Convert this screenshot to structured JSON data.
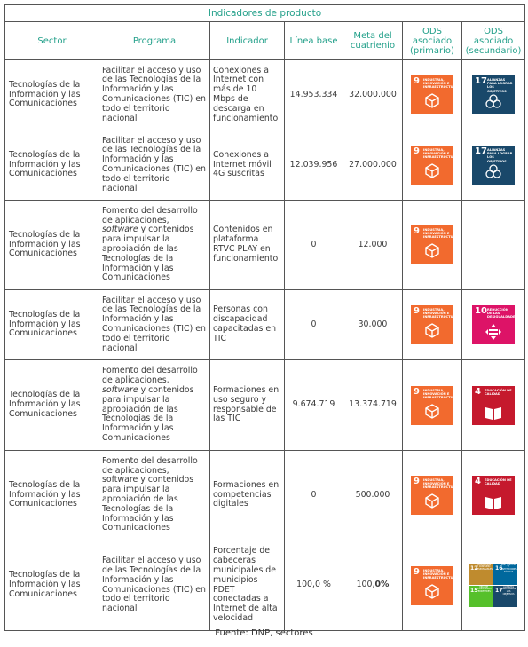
{
  "table_title": "Indicadores de producto",
  "headers": {
    "sector": "Sector",
    "programa": "Programa",
    "indicador": "Indicador",
    "linea_base": "Línea base",
    "meta": "Meta del cuatrienio",
    "ods_primario": "ODS asociado (primario)",
    "ods_secundario": "ODS asociado (secundario)"
  },
  "rows": [
    {
      "sector": "Tecnologías de la Información y las Comunicaciones",
      "programa": "Facilitar el acceso y uso de las Tecnologías de la Información y las Comunicaciones (TIC) en todo el territorio nacional",
      "indicador": "Conexiones a Internet con más de 10 Mbps de descarga en funcionamiento",
      "linea_base": "14.953.334",
      "meta": "32.000.000",
      "ods_primario": {
        "number": "9",
        "text": "INDUSTRIA, INNOVACIÓN E INFRAESTRUCTURA"
      },
      "ods_secundario": {
        "number": "17",
        "text": "ALIANZAS PARA LOGRAR LOS OBJETIVOS"
      }
    },
    {
      "sector": "Tecnologías de la Información y las Comunicaciones",
      "programa": "Facilitar el acceso y uso de las Tecnologías de la Información y las Comunicaciones (TIC) en todo el territorio nacional",
      "indicador": "Conexiones a Internet móvil 4G suscritas",
      "linea_base": "12.039.956",
      "meta": "27.000.000",
      "ods_primario": {
        "number": "9",
        "text": "INDUSTRIA, INNOVACIÓN E INFRAESTRUCTURA"
      },
      "ods_secundario": {
        "number": "17",
        "text": "ALIANZAS PARA LOGRAR LOS OBJETIVOS"
      }
    },
    {
      "sector": "Tecnologías de la Información y las Comunicaciones",
      "programa_parts": [
        "Fomento del desarrollo de aplicaciones, ",
        "software",
        " y contenidos para impulsar la apropiación de las Tecnologías de la Información y las Comunicaciones"
      ],
      "indicador": "Contenidos en plataforma RTVC PLAY en funcionamiento",
      "linea_base": "0",
      "meta": "12.000",
      "ods_primario": {
        "number": "9",
        "text": "INDUSTRIA, INNOVACIÓN E INFRAESTRUCTURA"
      }
    },
    {
      "sector": "Tecnologías de la Información y las Comunicaciones",
      "programa": "Facilitar el acceso y uso de las Tecnologías de la Información y las Comunicaciones (TIC) en todo el territorio nacional",
      "indicador": "Personas con discapacidad capacitadas en TIC",
      "linea_base": "0",
      "meta": "30.000",
      "ods_primario": {
        "number": "9",
        "text": "INDUSTRIA, INNOVACIÓN E INFRAESTRUCTURA"
      },
      "ods_secundario": {
        "number": "10",
        "text": "REDUCCIÓN DE LAS DESIGUALDADES"
      }
    },
    {
      "sector": "Tecnologías de la Información y las Comunicaciones",
      "programa_parts": [
        "Fomento del desarrollo de aplicaciones, ",
        "software",
        " y contenidos para impulsar la apropiación de las Tecnologías de la Información y las Comunicaciones"
      ],
      "indicador": "Formaciones en uso seguro y responsable de las TIC",
      "linea_base": "9.674.719",
      "meta": "13.374.719",
      "ods_primario": {
        "number": "9",
        "text": "INDUSTRIA, INNOVACIÓN E INFRAESTRUCTURA"
      },
      "ods_secundario": {
        "number": "4",
        "text": "EDUCACIÓN DE CALIDAD"
      }
    },
    {
      "sector": "Tecnologías de la Información y las Comunicaciones",
      "programa": "Fomento del desarrollo de aplicaciones, software y contenidos para impulsar la apropiación de las Tecnologías de la Información y las Comunicaciones",
      "indicador": "Formaciones en competencias digitales",
      "linea_base": "0",
      "meta": "500.000",
      "ods_primario": {
        "number": "9",
        "text": "INDUSTRIA, INNOVACIÓN E INFRAESTRUCTURA"
      },
      "ods_secundario": {
        "number": "4",
        "text": "EDUCACIÓN DE CALIDAD"
      }
    },
    {
      "sector": "Tecnologías de la Información y las Comunicaciones",
      "programa": "Facilitar el acceso y uso de las Tecnologías de la Información y las Comunicaciones (TIC) en todo el territorio nacional",
      "indicador": "Porcentaje de cabeceras municipales de municipios PDET conectadas a Internet de alta velocidad",
      "linea_base": "100,0 %",
      "meta_parts": [
        "100,",
        "0%"
      ],
      "ods_primario": {
        "number": "9",
        "text": "INDUSTRIA, INNOVACIÓN E INFRAESTRUCTURA"
      },
      "ods_secundario_multi": [
        {
          "number": "12",
          "text": "PRODUCCIÓN Y CONSUMO RESPONSABLES"
        },
        {
          "number": "16",
          "text": "PAZ, JUSTICIA E INSTITUCIONES SÓLIDAS"
        },
        {
          "number": "15",
          "text": "VIDA DE ECOSISTEMAS TERRESTRES"
        },
        {
          "number": "17",
          "text": "ALIANZAS PARA LOGRAR LOS OBJETIVOS"
        }
      ]
    }
  ],
  "source": "Fuente: DNP, sectores",
  "colors": {
    "header_text": "#23a08a",
    "ods9": "#f26a2e",
    "ods17": "#19486a",
    "ods10": "#dd1367",
    "ods4": "#c5192d"
  }
}
